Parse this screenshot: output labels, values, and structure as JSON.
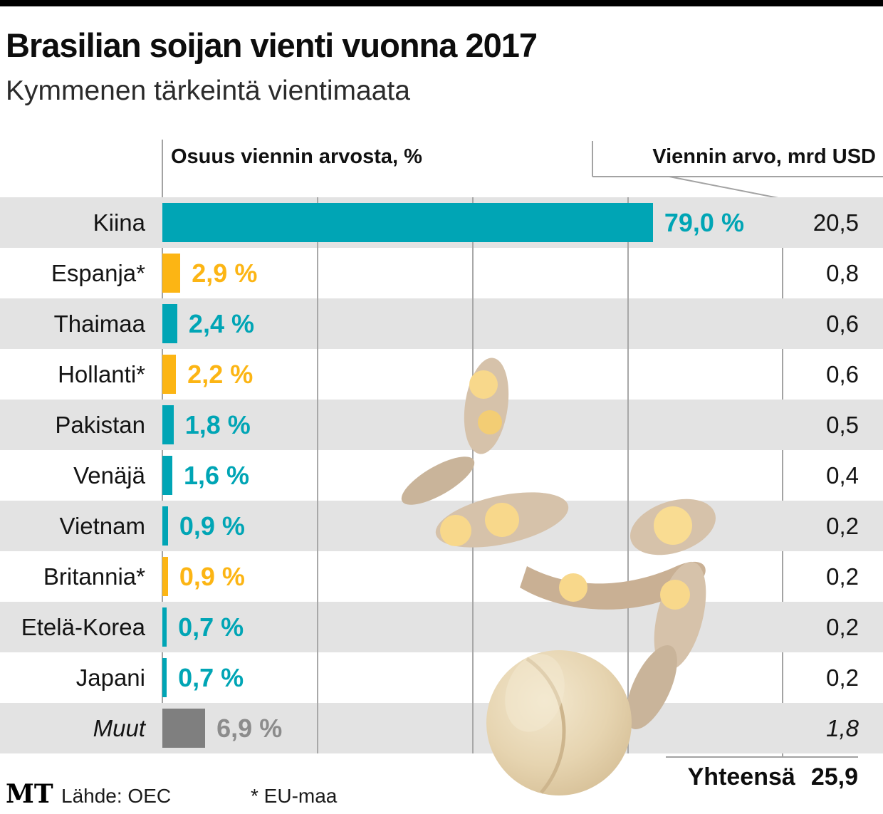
{
  "header": {
    "title": "Brasilian soijan vienti vuonna 2017",
    "subtitle": "Kymmenen tärkeintä vientimaata"
  },
  "chart_data": {
    "type": "bar",
    "orientation": "horizontal",
    "title": "Brasilian soijan vienti vuonna 2017",
    "subtitle": "Kymmenen tärkeintä vientimaata",
    "left_column_header": "Osuus viennin arvosta, %",
    "right_column_header": "Viennin arvo, mrd USD",
    "categories": [
      "Kiina",
      "Espanja*",
      "Thaimaa",
      "Hollanti*",
      "Pakistan",
      "Venäjä",
      "Vietnam",
      "Britannia*",
      "Etelä-Korea",
      "Japani",
      "Muut"
    ],
    "share_pct": [
      79.0,
      2.9,
      2.4,
      2.2,
      1.8,
      1.6,
      0.9,
      0.9,
      0.7,
      0.7,
      6.9
    ],
    "share_labels": [
      "79,0 %",
      "2,9 %",
      "2,4 %",
      "2,2 %",
      "1,8 %",
      "1,6 %",
      "0,9 %",
      "0,9 %",
      "0,7 %",
      "0,7 %",
      "6,9 %"
    ],
    "values_mrd_usd": [
      20.5,
      0.8,
      0.6,
      0.6,
      0.5,
      0.4,
      0.2,
      0.2,
      0.2,
      0.2,
      1.8
    ],
    "value_labels": [
      "20,5",
      "0,8",
      "0,6",
      "0,6",
      "0,5",
      "0,4",
      "0,2",
      "0,2",
      "0,2",
      "0,2",
      "1,8"
    ],
    "bar_color_keys": [
      "teal",
      "yellow",
      "teal",
      "yellow",
      "teal",
      "teal",
      "teal",
      "yellow",
      "teal",
      "teal",
      "gray"
    ],
    "xlim_pct": [
      0,
      100
    ],
    "gridlines_pct": [
      25,
      50,
      75
    ],
    "total_label": "Yhteensä",
    "total_value": "25,9"
  },
  "colors": {
    "teal": "#00a5b5",
    "yellow": "#fcb514",
    "gray": "#7f7f7f",
    "gray_text": "#8c8c8c",
    "stripe": "#e3e3e3",
    "line": "#a3a3a3"
  },
  "footer": {
    "logo": "MT",
    "source": "Lähde: OEC",
    "note": "* EU-maa"
  }
}
